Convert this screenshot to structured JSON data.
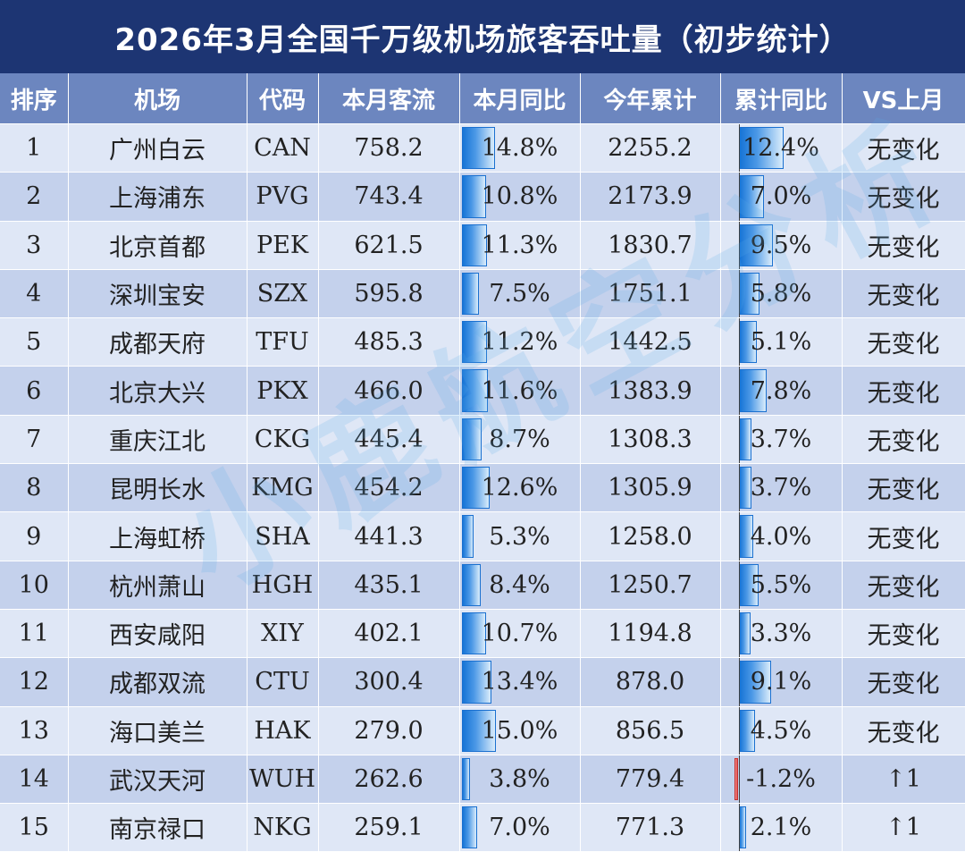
{
  "title": "2026年3月全国千万级机场旅客吞吐量（初步统计）",
  "headers": {
    "rank": "排序",
    "airport": "机场",
    "code": "代码",
    "month_traffic": "本月客流",
    "month_yoy": "本月同比",
    "ytd_total": "今年累计",
    "ytd_yoy": "累计同比",
    "vs_last_month": "VS上月"
  },
  "watermark": "小鹿航空分析",
  "colors": {
    "header_bg": "#6c86bf",
    "title_bg": "#1d3573",
    "bar_positive": "#1674d6",
    "bar_negative": "#e04848"
  },
  "rows": [
    {
      "rank": "1",
      "airport": "广州白云",
      "code": "CAN",
      "month_traffic": "758.2",
      "month_yoy": "14.8%",
      "month_yoy_value": 14.8,
      "ytd_total": "2255.2",
      "ytd_yoy": "12.4%",
      "ytd_yoy_value": 12.4,
      "vs": "无变化"
    },
    {
      "rank": "2",
      "airport": "上海浦东",
      "code": "PVG",
      "month_traffic": "743.4",
      "month_yoy": "10.8%",
      "month_yoy_value": 10.8,
      "ytd_total": "2173.9",
      "ytd_yoy": "7.0%",
      "ytd_yoy_value": 7.0,
      "vs": "无变化"
    },
    {
      "rank": "3",
      "airport": "北京首都",
      "code": "PEK",
      "month_traffic": "621.5",
      "month_yoy": "11.3%",
      "month_yoy_value": 11.3,
      "ytd_total": "1830.7",
      "ytd_yoy": "9.5%",
      "ytd_yoy_value": 9.5,
      "vs": "无变化"
    },
    {
      "rank": "4",
      "airport": "深圳宝安",
      "code": "SZX",
      "month_traffic": "595.8",
      "month_yoy": "7.5%",
      "month_yoy_value": 7.5,
      "ytd_total": "1751.1",
      "ytd_yoy": "5.8%",
      "ytd_yoy_value": 5.8,
      "vs": "无变化"
    },
    {
      "rank": "5",
      "airport": "成都天府",
      "code": "TFU",
      "month_traffic": "485.3",
      "month_yoy": "11.2%",
      "month_yoy_value": 11.2,
      "ytd_total": "1442.5",
      "ytd_yoy": "5.1%",
      "ytd_yoy_value": 5.1,
      "vs": "无变化"
    },
    {
      "rank": "6",
      "airport": "北京大兴",
      "code": "PKX",
      "month_traffic": "466.0",
      "month_yoy": "11.6%",
      "month_yoy_value": 11.6,
      "ytd_total": "1383.9",
      "ytd_yoy": "7.8%",
      "ytd_yoy_value": 7.8,
      "vs": "无变化"
    },
    {
      "rank": "7",
      "airport": "重庆江北",
      "code": "CKG",
      "month_traffic": "445.4",
      "month_yoy": "8.7%",
      "month_yoy_value": 8.7,
      "ytd_total": "1308.3",
      "ytd_yoy": "3.7%",
      "ytd_yoy_value": 3.7,
      "vs": "无变化"
    },
    {
      "rank": "8",
      "airport": "昆明长水",
      "code": "KMG",
      "month_traffic": "454.2",
      "month_yoy": "12.6%",
      "month_yoy_value": 12.6,
      "ytd_total": "1305.9",
      "ytd_yoy": "3.7%",
      "ytd_yoy_value": 3.7,
      "vs": "无变化"
    },
    {
      "rank": "9",
      "airport": "上海虹桥",
      "code": "SHA",
      "month_traffic": "441.3",
      "month_yoy": "5.3%",
      "month_yoy_value": 5.3,
      "ytd_total": "1258.0",
      "ytd_yoy": "4.0%",
      "ytd_yoy_value": 4.0,
      "vs": "无变化"
    },
    {
      "rank": "10",
      "airport": "杭州萧山",
      "code": "HGH",
      "month_traffic": "435.1",
      "month_yoy": "8.4%",
      "month_yoy_value": 8.4,
      "ytd_total": "1250.7",
      "ytd_yoy": "5.5%",
      "ytd_yoy_value": 5.5,
      "vs": "无变化"
    },
    {
      "rank": "11",
      "airport": "西安咸阳",
      "code": "XIY",
      "month_traffic": "402.1",
      "month_yoy": "10.7%",
      "month_yoy_value": 10.7,
      "ytd_total": "1194.8",
      "ytd_yoy": "3.3%",
      "ytd_yoy_value": 3.3,
      "vs": "无变化"
    },
    {
      "rank": "12",
      "airport": "成都双流",
      "code": "CTU",
      "month_traffic": "300.4",
      "month_yoy": "13.4%",
      "month_yoy_value": 13.4,
      "ytd_total": "878.0",
      "ytd_yoy": "9.1%",
      "ytd_yoy_value": 9.1,
      "vs": "无变化"
    },
    {
      "rank": "13",
      "airport": "海口美兰",
      "code": "HAK",
      "month_traffic": "279.0",
      "month_yoy": "15.0%",
      "month_yoy_value": 15.0,
      "ytd_total": "856.5",
      "ytd_yoy": "4.5%",
      "ytd_yoy_value": 4.5,
      "vs": "无变化"
    },
    {
      "rank": "14",
      "airport": "武汉天河",
      "code": "WUH",
      "month_traffic": "262.6",
      "month_yoy": "3.8%",
      "month_yoy_value": 3.8,
      "ytd_total": "779.4",
      "ytd_yoy": "-1.2%",
      "ytd_yoy_value": -1.2,
      "vs": "↑1"
    },
    {
      "rank": "15",
      "airport": "南京禄口",
      "code": "NKG",
      "month_traffic": "259.1",
      "month_yoy": "7.0%",
      "month_yoy_value": 7.0,
      "ytd_total": "771.3",
      "ytd_yoy": "2.1%",
      "ytd_yoy_value": 2.1,
      "vs": "↑1"
    }
  ]
}
